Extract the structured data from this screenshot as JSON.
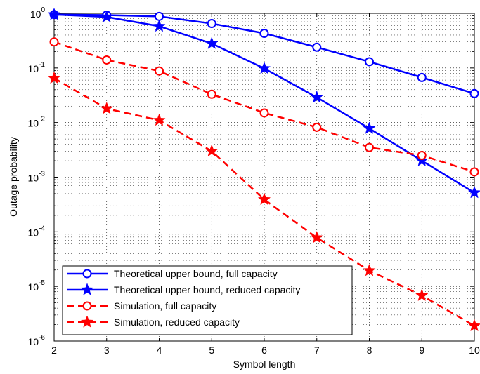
{
  "chart_data": {
    "type": "line",
    "xlabel": "Symbol length",
    "ylabel": "Outage probability",
    "x": [
      2,
      3,
      4,
      5,
      6,
      7,
      8,
      9,
      10
    ],
    "xlim": [
      2,
      10
    ],
    "ylim": [
      1e-06,
      1
    ],
    "yscale": "log",
    "grid": true,
    "legend_position": "bottom-left",
    "x_tick_labels": [
      "2",
      "3",
      "4",
      "5",
      "6",
      "7",
      "8",
      "9",
      "10"
    ],
    "y_tick_labels": [
      {
        "base": "10",
        "exp": "-6"
      },
      {
        "base": "10",
        "exp": "-5"
      },
      {
        "base": "10",
        "exp": "-4"
      },
      {
        "base": "10",
        "exp": "-3"
      },
      {
        "base": "10",
        "exp": "-2"
      },
      {
        "base": "10",
        "exp": "-1"
      },
      {
        "base": "10",
        "exp": "0"
      }
    ],
    "series": [
      {
        "name": "Theoretical upper bound, full capacity",
        "color": "#0000ff",
        "dash": "solid",
        "marker": "circle",
        "values": [
          0.95,
          0.93,
          0.88,
          0.65,
          0.43,
          0.24,
          0.13,
          0.067,
          0.034
        ]
      },
      {
        "name": "Theoretical upper bound, reduced capacity",
        "color": "#0000ff",
        "dash": "solid",
        "marker": "star",
        "values": [
          0.95,
          0.86,
          0.58,
          0.28,
          0.098,
          0.029,
          0.0078,
          0.002,
          0.00052
        ]
      },
      {
        "name": "Simulation, full capacity",
        "color": "#ff0000",
        "dash": "dashed",
        "marker": "circle",
        "values": [
          0.3,
          0.14,
          0.088,
          0.033,
          0.015,
          0.0082,
          0.0035,
          0.0025,
          0.00125
        ]
      },
      {
        "name": "Simulation, reduced capacity",
        "color": "#ff0000",
        "dash": "dashed",
        "marker": "star",
        "values": [
          0.065,
          0.018,
          0.011,
          0.003,
          0.00039,
          7.8e-05,
          1.95e-05,
          6.8e-06,
          1.9e-06
        ]
      }
    ]
  }
}
